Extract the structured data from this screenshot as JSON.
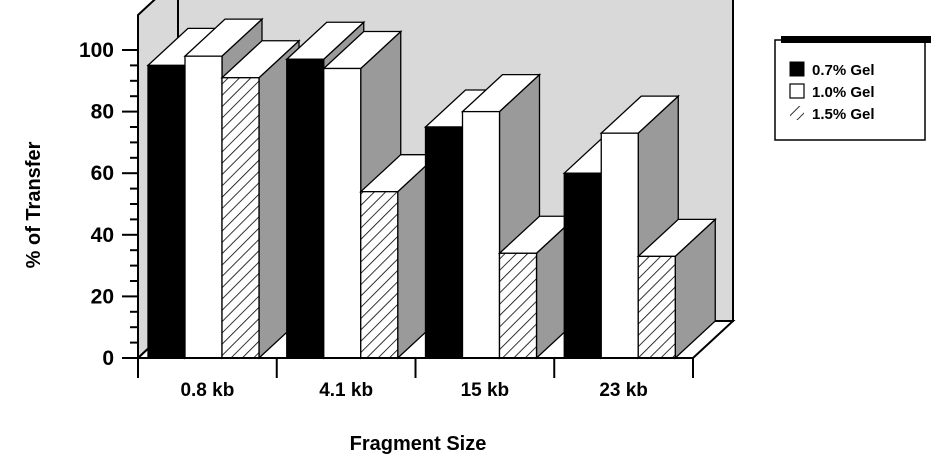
{
  "chart_data": {
    "type": "bar",
    "title": "",
    "xlabel": "Fragment Size",
    "ylabel": "% of Transfer",
    "categories": [
      "0.8 kb",
      "4.1 kb",
      "15 kb",
      "23 kb"
    ],
    "series": [
      {
        "name": "0.7% Gel",
        "values": [
          95,
          97,
          75,
          60
        ],
        "fill": "solid-black"
      },
      {
        "name": "1.0% Gel",
        "values": [
          98,
          94,
          80,
          73
        ],
        "fill": "white"
      },
      {
        "name": "1.5% Gel",
        "values": [
          91,
          54,
          34,
          33
        ],
        "fill": "diagonal-hatch"
      }
    ],
    "ylim": [
      0,
      100
    ],
    "yticks": [
      "0",
      "20",
      "40",
      "60",
      "80",
      "100"
    ],
    "grid": false,
    "legend_position": "top-right",
    "style": "3d-bar",
    "colors": {
      "black": "#000000",
      "white": "#ffffff",
      "side_gray": "#9a9a9a",
      "back_wall": "#d9d9d9"
    }
  }
}
